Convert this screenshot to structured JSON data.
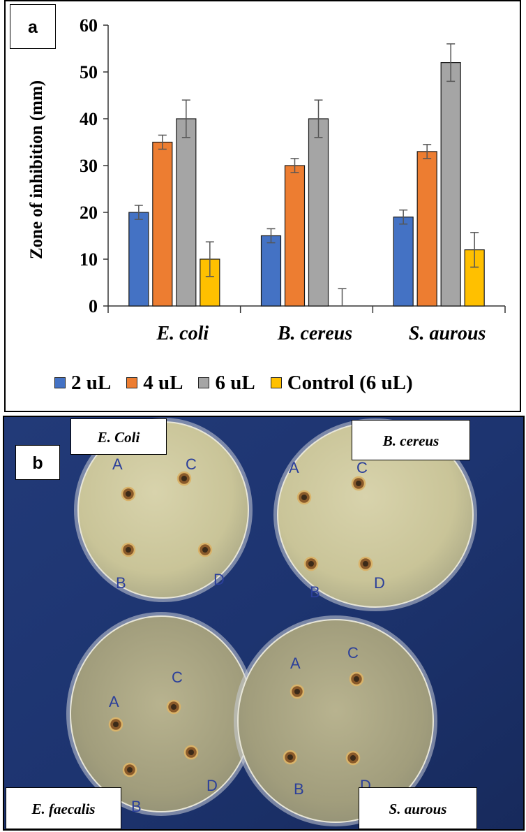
{
  "panel_a": {
    "label": "a"
  },
  "panel_b": {
    "label": "b",
    "plate_labels": [
      "E. Coli",
      "B. cereus",
      "E. faecalis",
      "S. aurous"
    ],
    "well_marks": [
      "A",
      "B",
      "C",
      "D"
    ]
  },
  "chart_data": {
    "type": "bar",
    "title": "",
    "xlabel": "",
    "ylabel": "Zone of inhibition (mm)",
    "ylim": [
      0,
      60
    ],
    "yticks": [
      0,
      10,
      20,
      30,
      40,
      50,
      60
    ],
    "categories": [
      "E. coli",
      "B. cereus",
      "S. aurous"
    ],
    "series": [
      {
        "name": "2 uL",
        "color": "#4472C4",
        "values": [
          20,
          15,
          19
        ],
        "errors": [
          1.5,
          1.5,
          1.5
        ]
      },
      {
        "name": "4 uL",
        "color": "#ED7D31",
        "values": [
          35,
          30,
          33
        ],
        "errors": [
          1.5,
          1.5,
          1.5
        ]
      },
      {
        "name": "6 uL",
        "color": "#A5A5A5",
        "values": [
          40,
          40,
          52
        ],
        "errors": [
          4,
          4,
          4
        ]
      },
      {
        "name": "Control (6 uL)",
        "color": "#FFC000",
        "values": [
          10,
          0,
          12
        ],
        "errors": [
          3.7,
          3.7,
          3.7
        ]
      }
    ],
    "legend": "bottom",
    "grid": false
  }
}
